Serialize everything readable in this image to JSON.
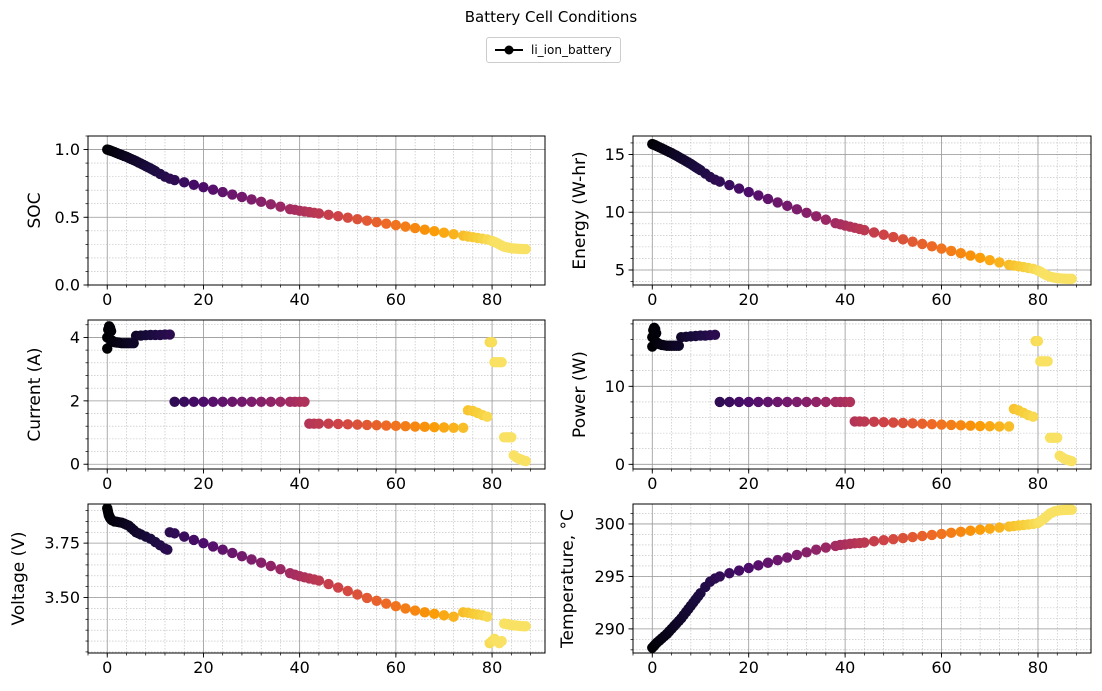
{
  "figure": {
    "title": "Battery Cell Conditions",
    "legend": [
      {
        "label": "li_ion_battery",
        "color": "#000000"
      }
    ],
    "colormap": [
      "#000004",
      "#1b0c41",
      "#4a0c6b",
      "#781c6d",
      "#a52c60",
      "#cf4446",
      "#ed6925",
      "#fb9b06",
      "#f7d13d",
      "#fcffa4"
    ],
    "time_range": [
      0,
      87
    ]
  },
  "chart_data": [
    {
      "type": "line",
      "ylabel": "SOC",
      "xlim": [
        -4,
        91
      ],
      "ylim": [
        0,
        1.1
      ],
      "xticks": [
        0,
        20,
        40,
        60,
        80
      ],
      "yticks": [
        0.0,
        0.5,
        1.0
      ],
      "ytick_labels": [
        "0.0",
        "0.5",
        "1.0"
      ],
      "grid": true,
      "minor_grid": true,
      "x": [
        0,
        0.3,
        0.6,
        1,
        1.5,
        2,
        2.5,
        3,
        3.5,
        4,
        4.5,
        5,
        5.5,
        6,
        6.5,
        7,
        7.5,
        8,
        8.5,
        9,
        9.5,
        10,
        11,
        12,
        13,
        14,
        16,
        18,
        20,
        22,
        24,
        26,
        28,
        30,
        32,
        34,
        36,
        38,
        39,
        40,
        41,
        42,
        43,
        44,
        46,
        48,
        50,
        52,
        54,
        56,
        58,
        60,
        62,
        64,
        66,
        68,
        70,
        72,
        74,
        75,
        76,
        77,
        78,
        79,
        80,
        80.5,
        81,
        81.5,
        82,
        82.5,
        83,
        83.5,
        84,
        84.5,
        85,
        85.5,
        86,
        86.5,
        87
      ],
      "y": [
        1.0,
        0.997,
        0.993,
        0.988,
        0.981,
        0.974,
        0.967,
        0.96,
        0.953,
        0.946,
        0.938,
        0.93,
        0.922,
        0.914,
        0.905,
        0.896,
        0.887,
        0.878,
        0.869,
        0.86,
        0.85,
        0.84,
        0.82,
        0.8,
        0.785,
        0.775,
        0.758,
        0.74,
        0.722,
        0.704,
        0.686,
        0.668,
        0.65,
        0.632,
        0.614,
        0.596,
        0.578,
        0.56,
        0.555,
        0.548,
        0.543,
        0.538,
        0.533,
        0.528,
        0.518,
        0.508,
        0.497,
        0.486,
        0.475,
        0.464,
        0.453,
        0.442,
        0.431,
        0.42,
        0.408,
        0.397,
        0.386,
        0.375,
        0.364,
        0.358,
        0.353,
        0.347,
        0.342,
        0.336,
        0.325,
        0.318,
        0.31,
        0.3,
        0.291,
        0.283,
        0.278,
        0.275,
        0.272,
        0.27,
        0.268,
        0.267,
        0.266,
        0.265,
        0.265
      ]
    },
    {
      "type": "line",
      "ylabel": "Energy (W-hr)",
      "xlim": [
        -4,
        91
      ],
      "ylim": [
        3.7,
        16.6
      ],
      "xticks": [
        0,
        20,
        40,
        60,
        80
      ],
      "yticks": [
        5,
        10,
        15
      ],
      "ytick_labels": [
        "5",
        "10",
        "15"
      ],
      "grid": true,
      "minor_grid": true,
      "x": [
        0,
        0.3,
        0.6,
        1,
        1.5,
        2,
        2.5,
        3,
        3.5,
        4,
        4.5,
        5,
        5.5,
        6,
        6.5,
        7,
        7.5,
        8,
        8.5,
        9,
        9.5,
        10,
        11,
        12,
        13,
        14,
        16,
        18,
        20,
        22,
        24,
        26,
        28,
        30,
        32,
        34,
        36,
        38,
        39,
        40,
        41,
        42,
        43,
        44,
        46,
        48,
        50,
        52,
        54,
        56,
        58,
        60,
        62,
        64,
        66,
        68,
        70,
        72,
        74,
        75,
        76,
        77,
        78,
        79,
        80,
        80.5,
        81,
        81.5,
        82,
        82.5,
        83,
        83.5,
        84,
        84.5,
        85,
        85.5,
        86,
        86.5,
        87
      ],
      "y": [
        15.9,
        15.85,
        15.8,
        15.72,
        15.62,
        15.52,
        15.42,
        15.32,
        15.22,
        15.12,
        15.0,
        14.9,
        14.78,
        14.66,
        14.54,
        14.42,
        14.3,
        14.18,
        14.04,
        13.9,
        13.77,
        13.64,
        13.35,
        13.05,
        12.82,
        12.65,
        12.35,
        12.05,
        11.75,
        11.45,
        11.15,
        10.85,
        10.55,
        10.25,
        9.95,
        9.65,
        9.35,
        9.05,
        8.95,
        8.85,
        8.75,
        8.65,
        8.55,
        8.45,
        8.25,
        8.05,
        7.85,
        7.65,
        7.45,
        7.25,
        7.05,
        6.85,
        6.65,
        6.45,
        6.25,
        6.05,
        5.85,
        5.65,
        5.45,
        5.38,
        5.32,
        5.25,
        5.18,
        5.1,
        4.95,
        4.85,
        4.72,
        4.6,
        4.5,
        4.42,
        4.37,
        4.33,
        4.3,
        4.28,
        4.26,
        4.25,
        4.24,
        4.23,
        4.23
      ]
    },
    {
      "type": "line",
      "ylabel": "Current (A)",
      "xlim": [
        -4,
        91
      ],
      "ylim": [
        -0.15,
        4.55
      ],
      "xticks": [
        0,
        20,
        40,
        60,
        80
      ],
      "yticks": [
        0,
        2,
        4
      ],
      "ytick_labels": [
        "0",
        "2",
        "4"
      ],
      "grid": true,
      "minor_grid": true,
      "x": [
        0,
        0,
        0.2,
        0.4,
        0.6,
        0.8,
        1,
        1.5,
        2,
        2.5,
        3,
        3.5,
        4,
        4.5,
        5,
        5.5,
        6,
        7,
        8,
        9,
        10,
        11,
        12,
        13,
        14,
        16,
        18,
        20,
        22,
        24,
        26,
        28,
        30,
        32,
        34,
        36,
        38,
        39,
        40,
        41,
        42,
        43,
        44,
        46,
        48,
        50,
        52,
        54,
        56,
        58,
        60,
        62,
        64,
        66,
        68,
        70,
        72,
        74,
        75,
        76,
        77,
        78,
        79,
        79.5,
        80,
        80.5,
        81,
        81.5,
        82,
        82.5,
        83,
        83.5,
        84,
        84.5,
        85,
        85.5,
        86,
        86.5,
        87
      ],
      "y": [
        3.65,
        4.0,
        4.25,
        4.35,
        4.3,
        4.2,
        3.9,
        3.85,
        3.84,
        3.83,
        3.82,
        3.82,
        3.82,
        3.82,
        3.82,
        3.82,
        4.05,
        4.06,
        4.07,
        4.08,
        4.08,
        4.08,
        4.09,
        4.09,
        1.97,
        1.97,
        1.97,
        1.97,
        1.97,
        1.97,
        1.97,
        1.97,
        1.97,
        1.97,
        1.97,
        1.97,
        1.97,
        1.97,
        1.97,
        1.97,
        1.28,
        1.28,
        1.28,
        1.28,
        1.27,
        1.26,
        1.25,
        1.24,
        1.23,
        1.22,
        1.21,
        1.2,
        1.19,
        1.18,
        1.17,
        1.16,
        1.15,
        1.15,
        1.7,
        1.68,
        1.62,
        1.55,
        1.5,
        3.85,
        3.85,
        3.22,
        3.22,
        3.22,
        3.22,
        0.85,
        0.85,
        0.85,
        0.85,
        0.28,
        0.22,
        0.18,
        0.15,
        0.12,
        0.1
      ]
    },
    {
      "type": "line",
      "ylabel": "Power (W)",
      "xlim": [
        -4,
        91
      ],
      "ylim": [
        -0.6,
        18.5
      ],
      "xticks": [
        0,
        20,
        40,
        60,
        80
      ],
      "yticks": [
        0,
        10
      ],
      "ytick_labels": [
        "0",
        "10"
      ],
      "grid": true,
      "minor_grid": true,
      "x": [
        0,
        0,
        0.2,
        0.4,
        0.6,
        0.8,
        1,
        1.5,
        2,
        2.5,
        3,
        3.5,
        4,
        4.5,
        5,
        5.5,
        6,
        7,
        8,
        9,
        10,
        11,
        12,
        13,
        14,
        16,
        18,
        20,
        22,
        24,
        26,
        28,
        30,
        32,
        34,
        36,
        38,
        39,
        40,
        41,
        42,
        43,
        44,
        46,
        48,
        50,
        52,
        54,
        56,
        58,
        60,
        62,
        64,
        66,
        68,
        70,
        72,
        74,
        75,
        76,
        77,
        78,
        79,
        79.5,
        80,
        80.5,
        81,
        81.5,
        82,
        82.5,
        83,
        83.5,
        84,
        84.5,
        85,
        85.5,
        86,
        86.5,
        87
      ],
      "y": [
        15.1,
        16.3,
        17.2,
        17.5,
        17.3,
        16.8,
        15.6,
        15.4,
        15.3,
        15.25,
        15.2,
        15.2,
        15.2,
        15.2,
        15.2,
        15.2,
        16.3,
        16.35,
        16.4,
        16.45,
        16.5,
        16.5,
        16.55,
        16.6,
        8.0,
        8.0,
        8.0,
        8.0,
        8.0,
        8.0,
        8.0,
        8.0,
        8.0,
        8.0,
        8.0,
        8.0,
        8.0,
        8.0,
        8.0,
        8.0,
        5.5,
        5.5,
        5.48,
        5.45,
        5.4,
        5.35,
        5.3,
        5.25,
        5.2,
        5.15,
        5.1,
        5.05,
        5.0,
        4.95,
        4.9,
        4.88,
        4.85,
        4.85,
        7.1,
        6.9,
        6.6,
        6.3,
        6.1,
        15.8,
        15.8,
        13.2,
        13.2,
        13.2,
        13.2,
        3.4,
        3.4,
        3.4,
        3.4,
        1.1,
        0.9,
        0.7,
        0.6,
        0.5,
        0.4
      ]
    },
    {
      "type": "line",
      "ylabel": "Voltage (V)",
      "xlim": [
        -4,
        91
      ],
      "ylim": [
        3.245,
        3.93
      ],
      "xticks": [
        0,
        20,
        40,
        60,
        80
      ],
      "yticks": [
        3.5,
        3.75
      ],
      "ytick_labels": [
        "3.50",
        "3.75"
      ],
      "grid": true,
      "minor_grid": true,
      "x": [
        0,
        0.1,
        0.2,
        0.3,
        0.4,
        0.5,
        0.6,
        0.8,
        1,
        1.5,
        2,
        2.5,
        3,
        3.5,
        4,
        4.5,
        5,
        5.5,
        6,
        6.5,
        7,
        8,
        9,
        10,
        11,
        12,
        12.5,
        13,
        14,
        16,
        18,
        20,
        22,
        24,
        26,
        28,
        30,
        32,
        34,
        36,
        38,
        39,
        40,
        41,
        42,
        43,
        44,
        46,
        48,
        50,
        52,
        54,
        56,
        58,
        60,
        62,
        64,
        66,
        68,
        70,
        72,
        74,
        75,
        76,
        77,
        78,
        79,
        79.5,
        80,
        80.5,
        81,
        81.5,
        82,
        82.5,
        83,
        83.5,
        84,
        84.5,
        85,
        85.5,
        86,
        86.5,
        87
      ],
      "y": [
        3.91,
        3.9,
        3.89,
        3.88,
        3.875,
        3.87,
        3.865,
        3.86,
        3.855,
        3.85,
        3.848,
        3.846,
        3.844,
        3.84,
        3.835,
        3.83,
        3.82,
        3.81,
        3.8,
        3.795,
        3.79,
        3.78,
        3.77,
        3.755,
        3.74,
        3.725,
        3.72,
        3.8,
        3.795,
        3.78,
        3.765,
        3.75,
        3.735,
        3.72,
        3.705,
        3.69,
        3.675,
        3.66,
        3.645,
        3.63,
        3.612,
        3.605,
        3.598,
        3.593,
        3.588,
        3.583,
        3.578,
        3.562,
        3.546,
        3.53,
        3.514,
        3.498,
        3.485,
        3.472,
        3.46,
        3.45,
        3.44,
        3.432,
        3.425,
        3.418,
        3.412,
        3.432,
        3.43,
        3.425,
        3.422,
        3.418,
        3.412,
        3.29,
        3.3,
        3.31,
        3.3,
        3.29,
        3.3,
        3.38,
        3.378,
        3.376,
        3.374,
        3.372,
        3.371,
        3.37,
        3.369,
        3.368,
        3.368
      ]
    },
    {
      "type": "line",
      "ylabel": "Temperature, °C",
      "xlim": [
        -4,
        91
      ],
      "ylim": [
        287.7,
        301.9
      ],
      "xticks": [
        0,
        20,
        40,
        60,
        80
      ],
      "yticks": [
        290,
        295,
        300
      ],
      "ytick_labels": [
        "290",
        "295",
        "300"
      ],
      "grid": true,
      "minor_grid": true,
      "x": [
        0,
        0.3,
        0.6,
        1,
        1.5,
        2,
        2.5,
        3,
        3.5,
        4,
        4.5,
        5,
        5.5,
        6,
        6.5,
        7,
        7.5,
        8,
        8.5,
        9,
        9.5,
        10,
        11,
        12,
        13,
        14,
        16,
        18,
        20,
        22,
        24,
        26,
        28,
        30,
        32,
        34,
        36,
        38,
        39,
        40,
        41,
        42,
        43,
        44,
        46,
        48,
        50,
        52,
        54,
        56,
        58,
        60,
        62,
        64,
        66,
        68,
        70,
        72,
        74,
        75,
        76,
        77,
        78,
        79,
        80,
        80.5,
        81,
        81.5,
        82,
        82.5,
        83,
        83.5,
        84,
        84.5,
        85,
        85.5,
        86,
        86.5,
        87
      ],
      "y": [
        288.2,
        288.35,
        288.5,
        288.7,
        288.9,
        289.1,
        289.3,
        289.5,
        289.75,
        290.0,
        290.25,
        290.5,
        290.75,
        291.0,
        291.3,
        291.6,
        291.9,
        292.2,
        292.5,
        292.8,
        293.1,
        293.4,
        294.0,
        294.5,
        294.8,
        295.0,
        295.3,
        295.55,
        295.8,
        296.05,
        296.3,
        296.55,
        296.8,
        297.05,
        297.3,
        297.55,
        297.75,
        297.9,
        298.0,
        298.05,
        298.1,
        298.15,
        298.18,
        298.22,
        298.35,
        298.45,
        298.55,
        298.65,
        298.75,
        298.85,
        298.95,
        299.05,
        299.15,
        299.25,
        299.35,
        299.45,
        299.55,
        299.65,
        299.75,
        299.8,
        299.85,
        299.9,
        299.95,
        300.0,
        300.1,
        300.25,
        300.4,
        300.6,
        300.8,
        301.0,
        301.1,
        301.2,
        301.25,
        301.3,
        301.32,
        301.33,
        301.34,
        301.35,
        301.35
      ]
    }
  ]
}
